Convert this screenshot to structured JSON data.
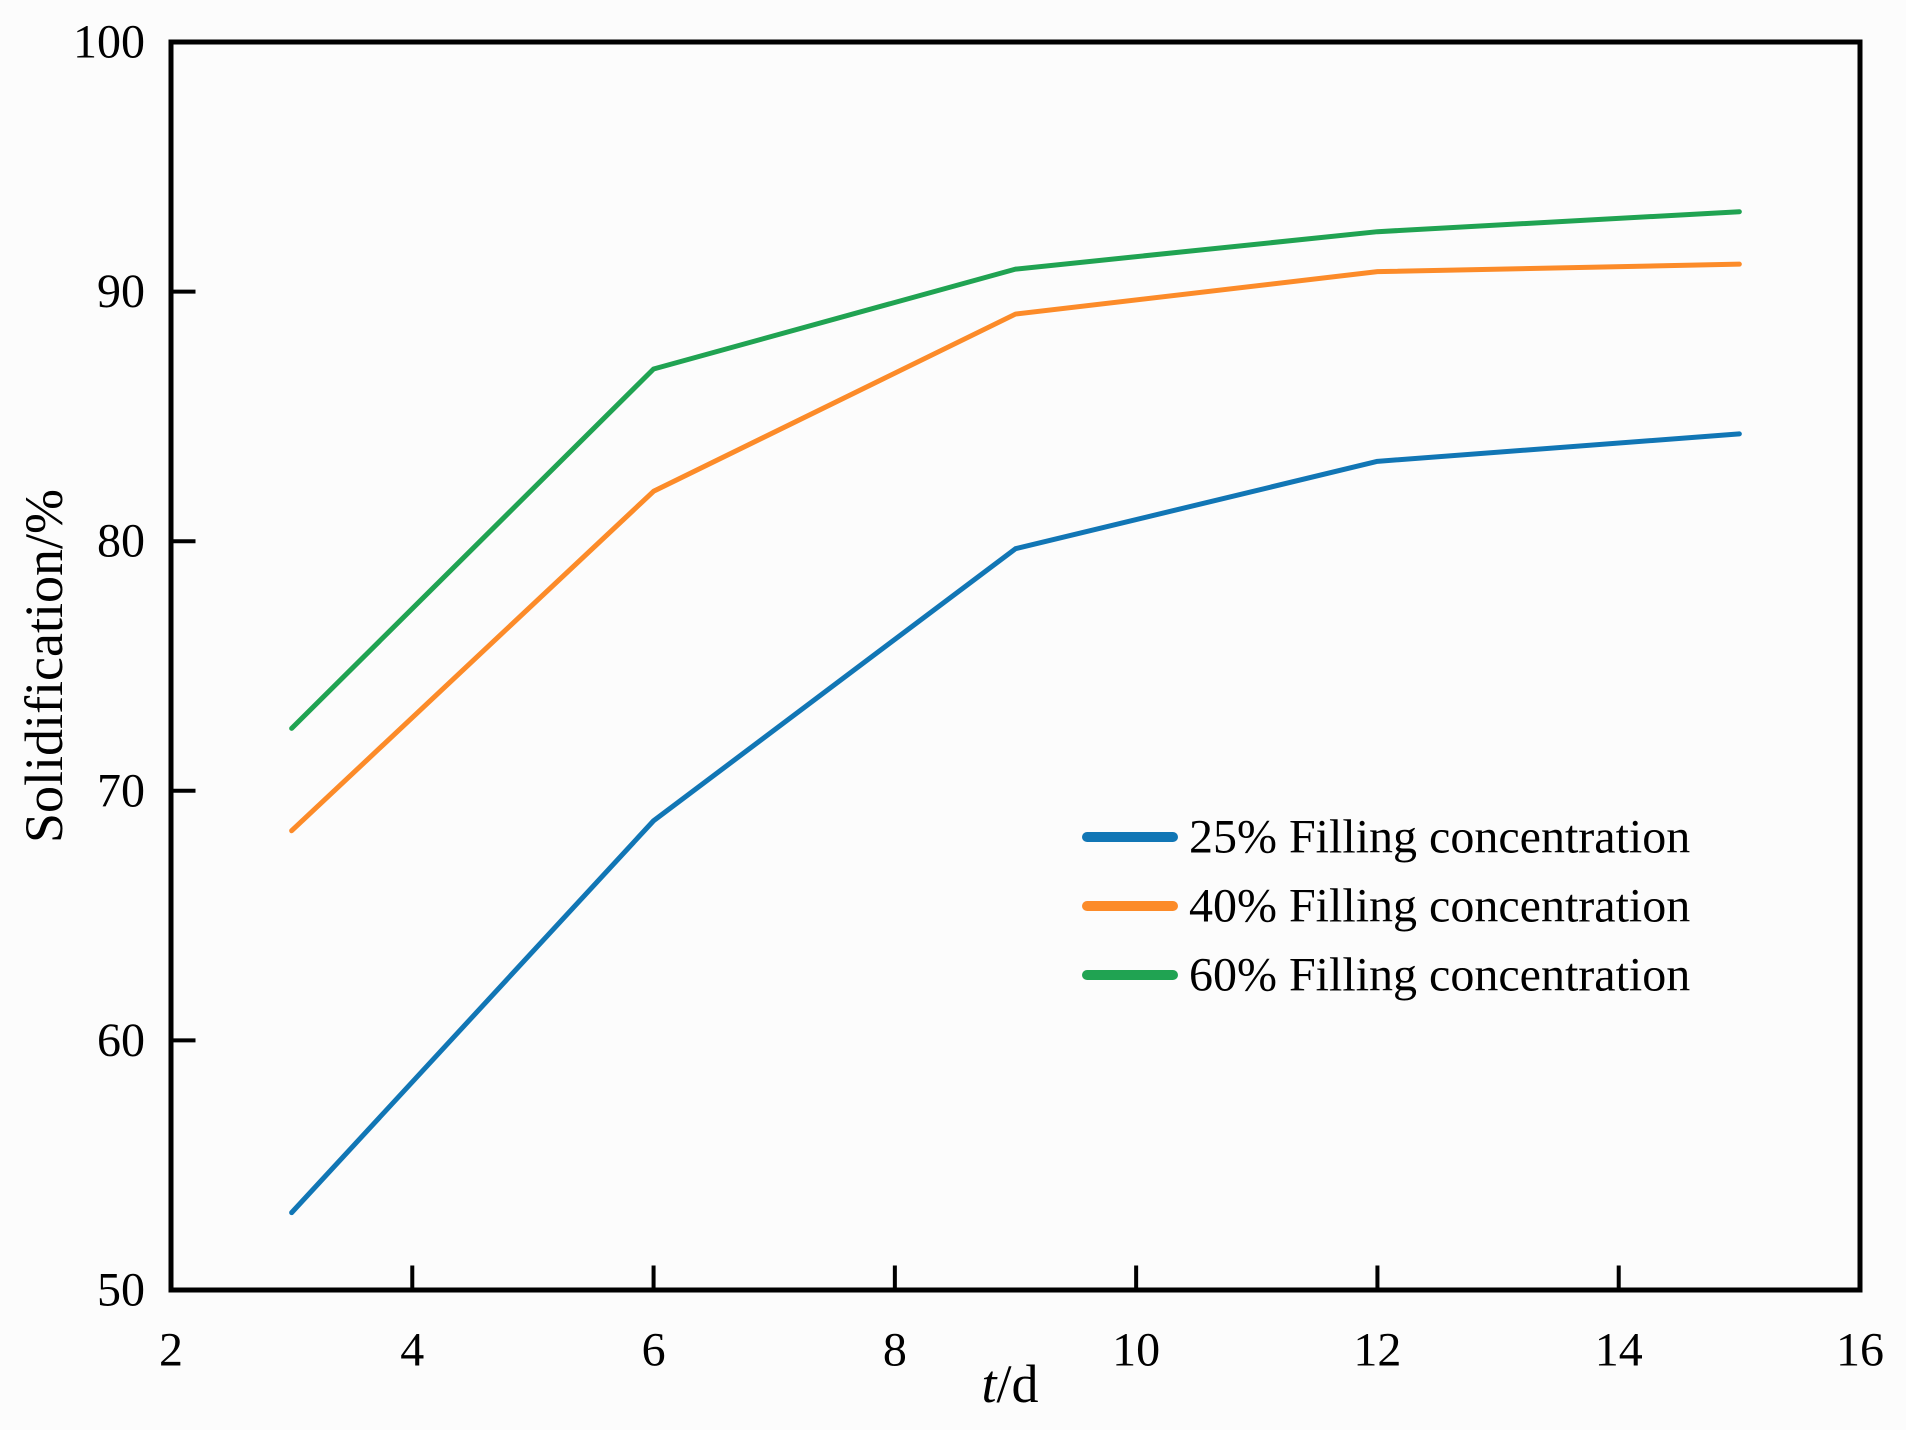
{
  "figure": {
    "background_color": "#fcfcfc",
    "axis_color": "#000000"
  },
  "chart_data": {
    "type": "line",
    "xlabel_variable": "t",
    "xlabel_unit": "/d",
    "ylabel": "Solidification/%",
    "xlim": [
      2,
      16
    ],
    "ylim": [
      50,
      100
    ],
    "xticks": [
      2,
      4,
      6,
      8,
      10,
      12,
      14,
      16
    ],
    "yticks": [
      50,
      60,
      70,
      80,
      90,
      100
    ],
    "grid": false,
    "legend_position": "center-right",
    "x": [
      3,
      6,
      9,
      12,
      15
    ],
    "series": [
      {
        "name": "25% Filling concentration",
        "color": "#1176b5",
        "values": [
          53.1,
          68.8,
          79.7,
          83.2,
          84.3
        ]
      },
      {
        "name": "40% Filling concentration",
        "color": "#fc8b29",
        "values": [
          68.4,
          82.0,
          89.1,
          90.8,
          91.1
        ]
      },
      {
        "name": "60% Filling concentration",
        "color": "#20a352",
        "values": [
          72.5,
          86.9,
          90.9,
          92.4,
          93.2
        ]
      }
    ]
  }
}
